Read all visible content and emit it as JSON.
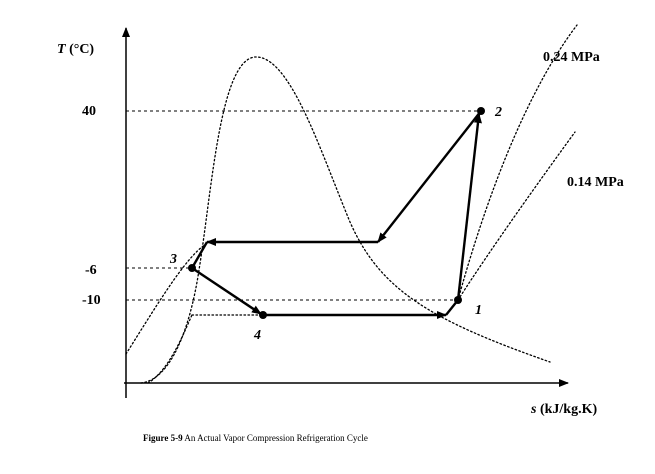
{
  "diagram": {
    "y_axis_label_var": "T",
    "y_axis_label_unit": " (°C)",
    "x_axis_label_var": "s",
    "x_axis_label_unit": " (kJ/kg.K)",
    "y_ticks": [
      "40",
      "-6",
      "-10"
    ],
    "pressure_high": "0.24 MPa",
    "pressure_low": "0.14 MPa",
    "points": [
      "1",
      "2",
      "3",
      "4"
    ]
  },
  "caption": {
    "figure_label": "Figure 5-9",
    "text": " An Actual Vapor Compression Refrigeration Cycle"
  }
}
